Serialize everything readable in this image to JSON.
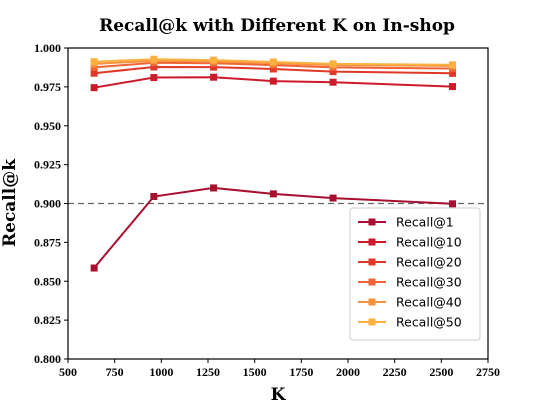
{
  "chart_data": {
    "type": "line",
    "title": "Recall@k with Different K on In-shop",
    "xlabel": "K",
    "ylabel": "Recall@k",
    "xlim": [
      500,
      2750
    ],
    "ylim": [
      0.8,
      1.0
    ],
    "x_ticks": [
      500,
      750,
      1000,
      1250,
      1500,
      1750,
      2000,
      2250,
      2500,
      2750
    ],
    "y_ticks": [
      0.8,
      0.825,
      0.85,
      0.875,
      0.9,
      0.925,
      0.95,
      0.975,
      1.0
    ],
    "x_tick_labels": [
      "500",
      "750",
      "1000",
      "1250",
      "1500",
      "1750",
      "2000",
      "2250",
      "2500",
      "2750"
    ],
    "y_tick_labels": [
      "0.800",
      "0.825",
      "0.850",
      "0.875",
      "0.900",
      "0.925",
      "0.950",
      "0.975",
      "1.000"
    ],
    "reference_line": 0.9,
    "grid": false,
    "legend_position": "lower-right",
    "x": [
      640,
      960,
      1280,
      1600,
      1920,
      2560
    ],
    "series": [
      {
        "name": "Recall@1",
        "color": "#a90f2e",
        "values": [
          0.8585,
          0.9045,
          0.91,
          0.9062,
          0.9035,
          0.8998
        ]
      },
      {
        "name": "Recall@10",
        "color": "#cc1a2a",
        "values": [
          0.9745,
          0.981,
          0.9812,
          0.9787,
          0.978,
          0.9752
        ]
      },
      {
        "name": "Recall@20",
        "color": "#e03828",
        "values": [
          0.9838,
          0.9878,
          0.9877,
          0.9865,
          0.9848,
          0.9837
        ]
      },
      {
        "name": "Recall@30",
        "color": "#ef6535",
        "values": [
          0.9875,
          0.9905,
          0.9902,
          0.989,
          0.9875,
          0.9868
        ]
      },
      {
        "name": "Recall@40",
        "color": "#f6923f",
        "values": [
          0.9898,
          0.9918,
          0.9914,
          0.9902,
          0.989,
          0.9885
        ]
      },
      {
        "name": "Recall@50",
        "color": "#fbb040",
        "values": [
          0.9912,
          0.9928,
          0.9922,
          0.991,
          0.9898,
          0.9892
        ]
      }
    ]
  }
}
